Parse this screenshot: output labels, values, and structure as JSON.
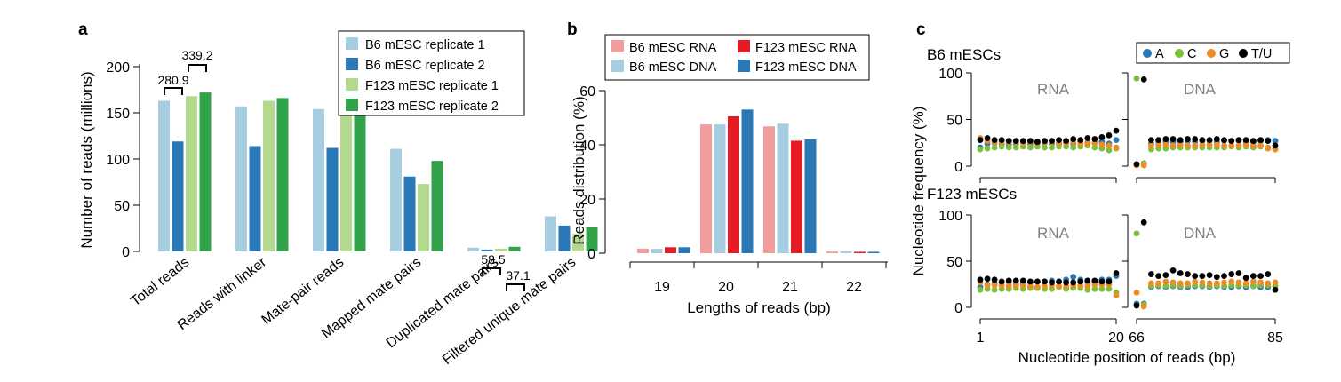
{
  "panels": {
    "a": "a",
    "b": "b",
    "c": "c"
  },
  "colors": {
    "b6_rep1": "#a6cde0",
    "b6_rep2": "#2a78b5",
    "f123_rep1": "#b3d98f",
    "f123_rep2": "#33a34b",
    "rna_b6": "#f19c9d",
    "rna_f123": "#e41c24",
    "dna_b6": "#a6cde0",
    "dna_f123": "#2a78b5",
    "nt_A": "#2a78b5",
    "nt_C": "#7cbf3a",
    "nt_G": "#f08a24",
    "nt_TU": "#000000"
  },
  "chart_data": [
    {
      "type": "bar",
      "panel": "a",
      "categories": [
        "Total reads",
        "Reads with linker",
        "Mate-pair reads",
        "Mapped mate pairs",
        "Duplicated mate pairs",
        "Filtered unique mate pairs"
      ],
      "series": [
        {
          "name": "B6 mESC replicate 1",
          "values": [
            163,
            157,
            154,
            111,
            4,
            38
          ]
        },
        {
          "name": "B6 mESC replicate 2",
          "values": [
            119,
            114,
            112,
            81,
            2,
            28
          ]
        },
        {
          "name": "F123 mESC replicate 1",
          "values": [
            168,
            163,
            161,
            73,
            3,
            19
          ]
        },
        {
          "name": "F123 mESC replicate 2",
          "values": [
            172,
            166,
            164,
            98,
            5,
            26
          ]
        }
      ],
      "yticks": [
        0,
        50,
        100,
        150,
        200
      ],
      "ylim": [
        0,
        200
      ],
      "ylabel": "Number of reads (millions)",
      "annotations": [
        "280.9",
        "339.2",
        "58.5",
        "37.1"
      ]
    },
    {
      "type": "bar",
      "panel": "b",
      "categories": [
        "19",
        "20",
        "21",
        "22"
      ],
      "series": [
        {
          "name": "B6 mESC RNA",
          "values": [
            1.7,
            47.5,
            46.8,
            0.6
          ]
        },
        {
          "name": "B6 mESC DNA",
          "values": [
            1.6,
            47.5,
            47.8,
            0.7
          ]
        },
        {
          "name": "F123 mESC RNA",
          "values": [
            2.2,
            50.5,
            41.5,
            0.5
          ]
        },
        {
          "name": "F123 mESC DNA",
          "values": [
            2.2,
            53.0,
            42.0,
            0.5
          ]
        }
      ],
      "yticks": [
        0,
        20,
        40,
        60
      ],
      "ylim": [
        0,
        60
      ],
      "xlabel": "Lengths of reads (bp)",
      "ylabel": "Reads distribution (%)"
    },
    {
      "type": "scatter",
      "panel": "c",
      "legend": [
        "A",
        "C",
        "G",
        "T/U"
      ],
      "ylabel": "Nucleotide frequency (%)",
      "xlabel": "Nucleotide position of reads (bp)",
      "yticks": [
        0,
        50,
        100
      ],
      "ylim": [
        0,
        100
      ],
      "rows": [
        {
          "title": "B6 mESCs",
          "subplots": [
            {
              "label": "RNA",
              "xticks": [
                "1",
                "20"
              ],
              "x": [
                1,
                20
              ],
              "A": [
                20,
                24,
                25,
                24,
                23,
                24,
                25,
                24,
                25,
                25,
                24,
                24,
                25,
                24,
                26,
                25,
                25,
                26,
                24,
                28
              ],
              "C": [
                18,
                19,
                20,
                21,
                20,
                20,
                21,
                20,
                21,
                20,
                20,
                21,
                21,
                20,
                21,
                22,
                20,
                19,
                17,
                19
              ],
              "G": [
                30,
                27,
                26,
                26,
                26,
                26,
                25,
                26,
                25,
                26,
                26,
                25,
                25,
                26,
                24,
                24,
                25,
                23,
                22,
                20
              ],
              "TU": [
                28,
                30,
                28,
                28,
                27,
                27,
                27,
                27,
                26,
                27,
                27,
                28,
                27,
                29,
                28,
                30,
                29,
                31,
                33,
                38
              ]
            },
            {
              "label": "DNA",
              "xticks": [
                "66",
                "85"
              ],
              "x": [
                66,
                85
              ],
              "A": [
                2,
                3,
                24,
                26,
                26,
                26,
                26,
                27,
                26,
                27,
                27,
                26,
                27,
                27,
                27,
                26,
                26,
                27,
                28,
                27
              ],
              "C": [
                94,
                3,
                18,
                19,
                19,
                20,
                20,
                20,
                20,
                20,
                20,
                20,
                20,
                21,
                20,
                21,
                20,
                21,
                20,
                18
              ],
              "G": [
                1,
                1,
                22,
                23,
                23,
                22,
                23,
                22,
                22,
                23,
                23,
                23,
                22,
                22,
                22,
                23,
                22,
                22,
                19,
                18
              ],
              "TU": [
                2,
                93,
                28,
                28,
                29,
                29,
                28,
                29,
                29,
                28,
                28,
                29,
                28,
                27,
                28,
                28,
                27,
                28,
                27,
                22
              ]
            }
          ]
        },
        {
          "title": "F123 mESCs",
          "subplots": [
            {
              "label": "RNA",
              "xticks": [
                "1",
                "20"
              ],
              "x": [
                1,
                20
              ],
              "A": [
                22,
                25,
                26,
                27,
                27,
                25,
                26,
                27,
                28,
                28,
                29,
                28,
                30,
                33,
                30,
                27,
                28,
                30,
                30,
                34
              ],
              "C": [
                19,
                20,
                19,
                20,
                20,
                21,
                20,
                21,
                21,
                20,
                20,
                22,
                20,
                21,
                21,
                19,
                20,
                20,
                20,
                16
              ],
              "G": [
                27,
                24,
                24,
                24,
                23,
                24,
                24,
                23,
                22,
                23,
                24,
                23,
                23,
                24,
                24,
                23,
                25,
                25,
                25,
                13
              ],
              "TU": [
                30,
                31,
                30,
                28,
                29,
                29,
                29,
                28,
                28,
                28,
                27,
                28,
                27,
                27,
                28,
                29,
                29,
                28,
                28,
                37
              ]
            },
            {
              "label": "DNA",
              "xticks": [
                "66",
                "85"
              ],
              "x": [
                66,
                85
              ],
              "A": [
                4,
                4,
                22,
                23,
                22,
                23,
                22,
                22,
                23,
                23,
                22,
                23,
                22,
                22,
                23,
                22,
                23,
                22,
                22,
                23
              ],
              "C": [
                80,
                3,
                23,
                24,
                23,
                24,
                23,
                24,
                24,
                24,
                23,
                24,
                23,
                24,
                24,
                24,
                23,
                24,
                24,
                23
              ],
              "G": [
                16,
                1,
                26,
                26,
                28,
                27,
                26,
                26,
                28,
                27,
                26,
                26,
                27,
                28,
                27,
                26,
                28,
                27,
                26,
                27
              ],
              "TU": [
                2,
                92,
                36,
                34,
                35,
                40,
                37,
                36,
                34,
                34,
                35,
                33,
                34,
                36,
                37,
                32,
                34,
                34,
                36,
                19
              ]
            }
          ]
        }
      ]
    }
  ]
}
